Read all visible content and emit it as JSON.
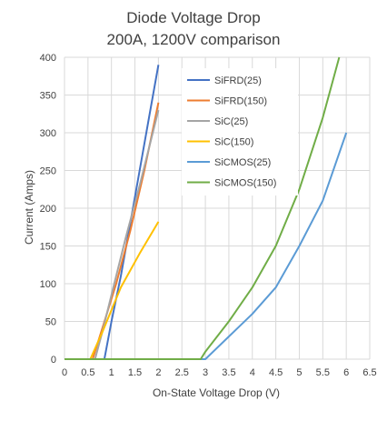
{
  "chart_data": {
    "type": "line",
    "title": "Diode Voltage Drop",
    "subtitle": "200A, 1200V comparison",
    "xlabel": "On-State Voltage Drop (V)",
    "ylabel": "Current (Amps)",
    "xlim": [
      0,
      6.5
    ],
    "ylim": [
      0,
      400
    ],
    "xticks": [
      "0",
      "0.5",
      "1",
      "1.5",
      "2",
      "2.5",
      "3",
      "3.5",
      "4",
      "4.5",
      "5",
      "5.5",
      "6",
      "6.5"
    ],
    "yticks": [
      "0",
      "50",
      "100",
      "150",
      "200",
      "250",
      "300",
      "350",
      "400"
    ],
    "grid": true,
    "legend_position": "top-right-inside",
    "series": [
      {
        "name": "SiFRD(25)",
        "color": "#4472c4",
        "points": [
          [
            0,
            0
          ],
          [
            0.85,
            0
          ],
          [
            1.0,
            50
          ],
          [
            1.2,
            110
          ],
          [
            1.4,
            180
          ],
          [
            1.6,
            250
          ],
          [
            1.8,
            320
          ],
          [
            2.0,
            390
          ]
        ]
      },
      {
        "name": "SiFRD(150)",
        "color": "#ed7d31",
        "points": [
          [
            0,
            0
          ],
          [
            0.6,
            0
          ],
          [
            0.8,
            40
          ],
          [
            1.1,
            100
          ],
          [
            1.4,
            170
          ],
          [
            1.7,
            250
          ],
          [
            2.0,
            340
          ]
        ]
      },
      {
        "name": "SiC(25)",
        "color": "#a5a5a5",
        "points": [
          [
            0,
            0
          ],
          [
            0.65,
            0
          ],
          [
            0.8,
            35
          ],
          [
            1.0,
            85
          ],
          [
            1.3,
            160
          ],
          [
            1.6,
            230
          ],
          [
            2.0,
            330
          ]
        ]
      },
      {
        "name": "SiC(150)",
        "color": "#ffc000",
        "points": [
          [
            0,
            0
          ],
          [
            0.55,
            0
          ],
          [
            0.8,
            35
          ],
          [
            1.2,
            95
          ],
          [
            1.6,
            140
          ],
          [
            2.0,
            182
          ]
        ]
      },
      {
        "name": "SiCMOS(25)",
        "color": "#5b9bd5",
        "points": [
          [
            0,
            0
          ],
          [
            3.0,
            0
          ],
          [
            3.5,
            30
          ],
          [
            4.0,
            60
          ],
          [
            4.5,
            95
          ],
          [
            5.0,
            150
          ],
          [
            5.5,
            210
          ],
          [
            6.0,
            300
          ]
        ]
      },
      {
        "name": "SiCMOS(150)",
        "color": "#70ad47",
        "points": [
          [
            0,
            0
          ],
          [
            2.9,
            0
          ],
          [
            3.0,
            10
          ],
          [
            3.5,
            50
          ],
          [
            4.0,
            95
          ],
          [
            4.5,
            150
          ],
          [
            5.0,
            225
          ],
          [
            5.5,
            320
          ],
          [
            5.85,
            400
          ]
        ]
      }
    ]
  }
}
